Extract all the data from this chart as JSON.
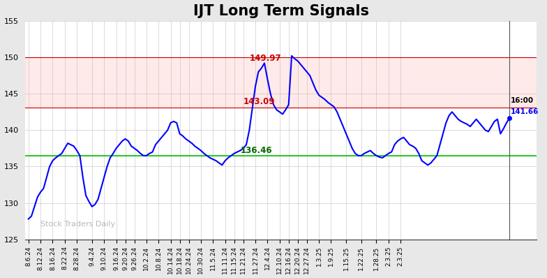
{
  "title": "IJT Long Term Signals",
  "title_fontsize": 15,
  "watermark": "Stock Traders Daily",
  "ylim": [
    125,
    155
  ],
  "yticks": [
    125,
    130,
    135,
    140,
    145,
    150,
    155
  ],
  "line_color": "blue",
  "line_width": 1.5,
  "hline_green": 136.46,
  "hline_green_color": "#00bb00",
  "hline_red1": 150.0,
  "hline_red2": 143.09,
  "plot_bg_color": "#ffffff",
  "fig_bg_color": "#e8e8e8",
  "grid_color": "#cccccc",
  "x_labels": [
    "8.6.24",
    "8.12.24",
    "8.16.24",
    "8.22.24",
    "8.28.24",
    "9.4.24",
    "9.10.24",
    "9.16.24",
    "9.20.24",
    "9.26.24",
    "10.2.24",
    "10.8.24",
    "10.14.24",
    "10.18.24",
    "10.24.24",
    "10.30.24",
    "11.5.24",
    "11.11.24",
    "11.15.24",
    "11.21.24",
    "11.27.24",
    "12.4.24",
    "12.10.24",
    "12.16.24",
    "12.20.24",
    "12.27.24",
    "1.3.25",
    "1.9.25",
    "1.15.25",
    "1.22.25",
    "1.28.25",
    "2.3.25",
    "2.3.25"
  ],
  "prices": [
    127.8,
    128.2,
    129.5,
    130.8,
    131.5,
    132.0,
    133.5,
    135.0,
    135.8,
    136.2,
    136.5,
    136.8,
    137.5,
    138.2,
    138.0,
    137.8,
    137.2,
    136.5,
    133.5,
    131.0,
    130.2,
    129.5,
    129.8,
    130.5,
    132.0,
    133.5,
    135.0,
    136.2,
    136.8,
    137.5,
    138.0,
    138.5,
    138.8,
    138.5,
    137.8,
    137.5,
    137.2,
    136.8,
    136.5,
    136.5,
    136.8,
    137.0,
    138.0,
    138.5,
    139.0,
    139.5,
    140.0,
    141.0,
    141.2,
    141.0,
    139.5,
    139.2,
    138.8,
    138.5,
    138.2,
    137.8,
    137.5,
    137.2,
    136.8,
    136.5,
    136.2,
    136.0,
    135.8,
    135.5,
    135.2,
    135.8,
    136.2,
    136.5,
    136.8,
    137.0,
    137.2,
    137.5,
    138.0,
    140.0,
    143.0,
    146.0,
    148.0,
    148.5,
    149.2,
    147.0,
    145.0,
    143.5,
    142.8,
    142.5,
    142.2,
    142.8,
    143.5,
    150.2,
    149.8,
    149.5,
    149.0,
    148.5,
    148.0,
    147.5,
    146.5,
    145.5,
    144.8,
    144.5,
    144.2,
    143.8,
    143.5,
    143.2,
    142.5,
    141.5,
    140.5,
    139.5,
    138.5,
    137.5,
    136.8,
    136.5,
    136.5,
    136.8,
    137.0,
    137.2,
    136.8,
    136.5,
    136.3,
    136.2,
    136.5,
    136.8,
    137.0,
    138.0,
    138.5,
    138.8,
    139.0,
    138.5,
    138.0,
    137.8,
    137.5,
    136.8,
    135.8,
    135.5,
    135.2,
    135.5,
    136.0,
    136.5,
    138.0,
    139.5,
    141.0,
    142.0,
    142.5,
    142.0,
    141.5,
    141.2,
    141.0,
    140.8,
    140.5,
    141.0,
    141.5,
    141.0,
    140.5,
    140.0,
    139.8,
    140.5,
    141.2,
    141.5,
    139.5,
    140.2,
    141.0,
    141.66
  ],
  "ann_high_label": "149.97",
  "ann_high_color": "#cc0000",
  "ann_mid_label": "143.09",
  "ann_mid_color": "#cc0000",
  "ann_low_label": "136.46",
  "ann_low_color": "#006600",
  "ann_last_time": "16:00",
  "ann_last_price": "141.66",
  "ann_last_color": "blue"
}
